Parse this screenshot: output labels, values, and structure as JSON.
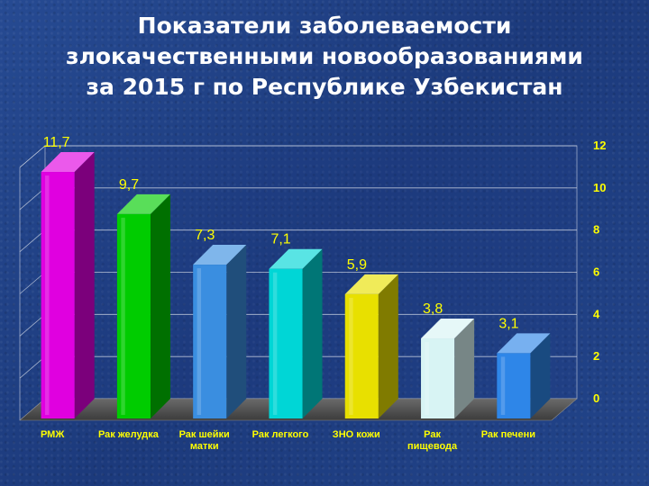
{
  "slide": {
    "title_lines": [
      "Показатели заболеваемости",
      "злокачественными новообразованиями",
      "за 2015 г по Республике Узбекистан"
    ]
  },
  "colors": {
    "background": "#1f3f84",
    "label": "#ffff00",
    "title": "#ffffff"
  },
  "chart_data": {
    "type": "bar",
    "title": "Показатели заболеваемости злокачественными новообразованиями за 2015 г по Республике Узбекистан",
    "categories": [
      [
        "РМЖ"
      ],
      [
        "Рак желудка"
      ],
      [
        "Рак шейки",
        "матки"
      ],
      [
        "Рак легкого"
      ],
      [
        "ЗНО кожи"
      ],
      [
        "Рак",
        "пищевода"
      ],
      [
        "Рак печени"
      ]
    ],
    "values": [
      11.7,
      9.7,
      7.3,
      7.1,
      5.9,
      3.8,
      3.1
    ],
    "value_labels": [
      "11,7",
      "9,7",
      "7,3",
      "7,1",
      "5,9",
      "3,8",
      "3,1"
    ],
    "bar_colors": [
      "#e000e0",
      "#00cc00",
      "#3a8ee0",
      "#00d6d6",
      "#e8e000",
      "#d8f4f4",
      "#2e86e8"
    ],
    "ylim": [
      0,
      12
    ],
    "yticks": [
      "0",
      "2",
      "4",
      "6",
      "8",
      "10",
      "12"
    ],
    "y_axis_side": "right",
    "grid": true,
    "style": "3d-bars"
  }
}
